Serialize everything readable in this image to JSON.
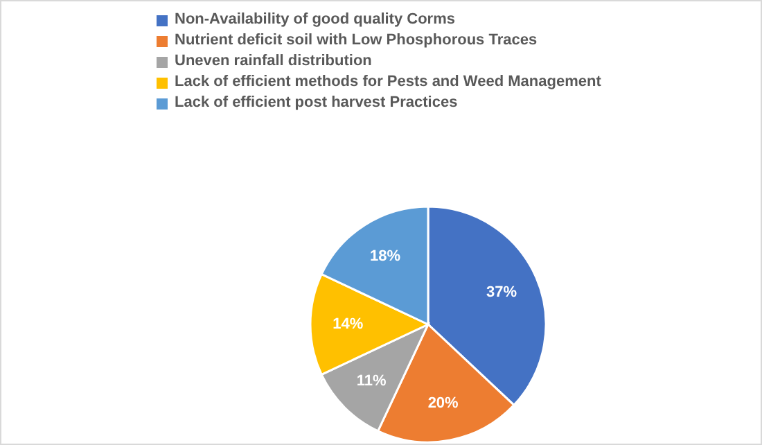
{
  "chart_data": {
    "type": "pie",
    "categories": [
      "Non-Availability of good quality Corms",
      "Nutrient deficit soil with Low Phosphorous Traces",
      "Uneven rainfall distribution",
      "Lack of efficient methods for Pests and Weed Management",
      "Lack of efficient post harvest Practices"
    ],
    "values": [
      37,
      20,
      11,
      14,
      18
    ],
    "colors": [
      "#4472c4",
      "#ed7d31",
      "#a5a5a5",
      "#ffc000",
      "#5b9bd5"
    ],
    "value_labels": [
      "37%",
      "20%",
      "11%",
      "14%",
      "18%"
    ],
    "legend": "top"
  }
}
